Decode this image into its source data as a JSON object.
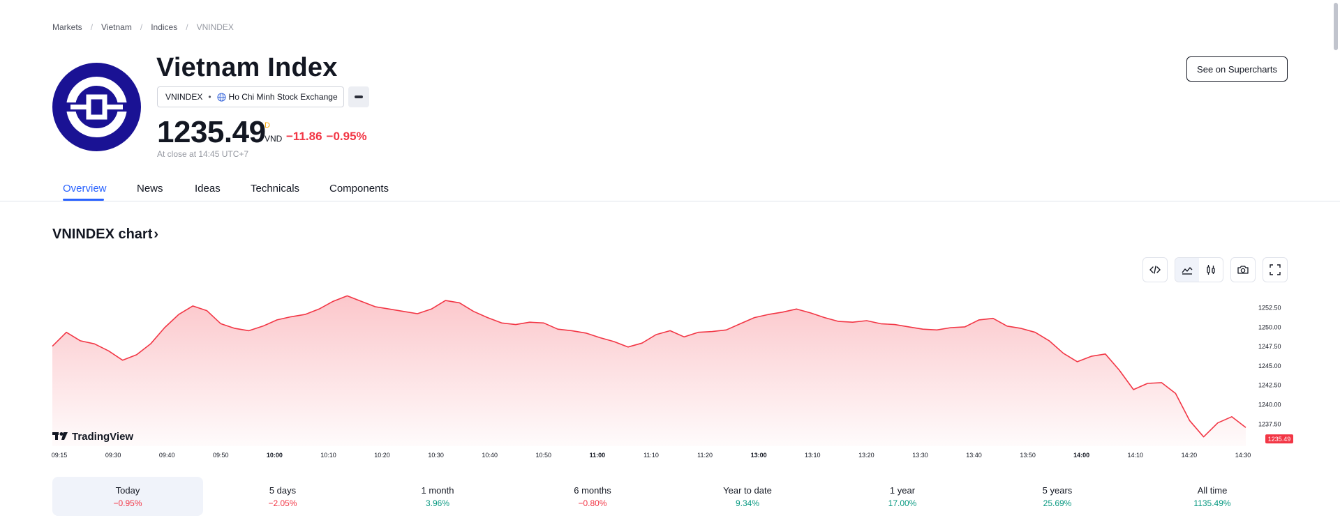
{
  "breadcrumb": [
    "Markets",
    "Vietnam",
    "Indices",
    "VNINDEX"
  ],
  "header": {
    "title": "Vietnam Index",
    "symbol": "VNINDEX",
    "exchange": "Ho Chi Minh Stock Exchange",
    "price": "1235.49",
    "price_flag": "D",
    "currency": "VND",
    "change": "−11.86",
    "change_percent": "−0.95%",
    "close_note": "At close at 14:45 UTC+7",
    "supercharts_label": "See on Supercharts"
  },
  "tabs": [
    "Overview",
    "News",
    "Ideas",
    "Technicals",
    "Components"
  ],
  "chart_section": {
    "title": "VNINDEX chart",
    "watermark": "TradingView",
    "last_price_label": "1235.49"
  },
  "colors": {
    "accent": "#2962ff",
    "negative": "#f23645",
    "positive": "#089981",
    "logo_bg": "#1a1294"
  },
  "chart_data": {
    "type": "area",
    "x_ticks": [
      "09:15",
      "09:30",
      "09:40",
      "09:50",
      "10:00",
      "10:10",
      "10:20",
      "10:30",
      "10:40",
      "10:50",
      "11:00",
      "11:10",
      "11:20",
      "13:00",
      "13:10",
      "13:20",
      "13:30",
      "13:40",
      "13:50",
      "14:00",
      "14:10",
      "14:20",
      "14:30"
    ],
    "bold_ticks": [
      "10:00",
      "11:00",
      "13:00",
      "14:00"
    ],
    "y_ticks": [
      "1252.50",
      "1250.00",
      "1247.50",
      "1245.00",
      "1242.50",
      "1240.00",
      "1237.50"
    ],
    "ylim": [
      1234.6,
      1254.4
    ],
    "series": [
      {
        "values": [
          1247.5,
          1249.3,
          1248.2,
          1247.8,
          1246.9,
          1245.7,
          1246.4,
          1247.8,
          1249.9,
          1251.6,
          1252.7,
          1252.1,
          1250.4,
          1249.8,
          1249.5,
          1250.1,
          1250.9,
          1251.3,
          1251.6,
          1252.3,
          1253.3,
          1254.0,
          1253.3,
          1252.6,
          1252.3,
          1252.0,
          1251.7,
          1252.3,
          1253.4,
          1253.1,
          1252.0,
          1251.2,
          1250.5,
          1250.3,
          1250.6,
          1250.5,
          1249.7,
          1249.5,
          1249.2,
          1248.6,
          1248.1,
          1247.4,
          1247.9,
          1249.0,
          1249.5,
          1248.7,
          1249.3,
          1249.4,
          1249.6,
          1250.4,
          1251.2,
          1251.6,
          1251.9,
          1252.3,
          1251.8,
          1251.2,
          1250.7,
          1250.6,
          1250.8,
          1250.4,
          1250.3,
          1250.0,
          1249.7,
          1249.6,
          1249.9,
          1250.0,
          1250.9,
          1251.1,
          1250.1,
          1249.8,
          1249.3,
          1248.2,
          1246.6,
          1245.5,
          1246.2,
          1246.5,
          1244.4,
          1241.9,
          1242.7,
          1242.8,
          1241.4,
          1237.9,
          1235.8,
          1237.6,
          1238.4,
          1237.0
        ],
        "color": "#f23645"
      }
    ],
    "last_value": 1235.49,
    "grid": false
  },
  "periods": [
    {
      "label": "Today",
      "value": "−0.95%",
      "dir": "neg"
    },
    {
      "label": "5 days",
      "value": "−2.05%",
      "dir": "neg"
    },
    {
      "label": "1 month",
      "value": "3.96%",
      "dir": "pos"
    },
    {
      "label": "6 months",
      "value": "−0.80%",
      "dir": "neg"
    },
    {
      "label": "Year to date",
      "value": "9.34%",
      "dir": "pos"
    },
    {
      "label": "1 year",
      "value": "17.00%",
      "dir": "pos"
    },
    {
      "label": "5 years",
      "value": "25.69%",
      "dir": "pos"
    },
    {
      "label": "All time",
      "value": "1135.49%",
      "dir": "pos"
    }
  ]
}
